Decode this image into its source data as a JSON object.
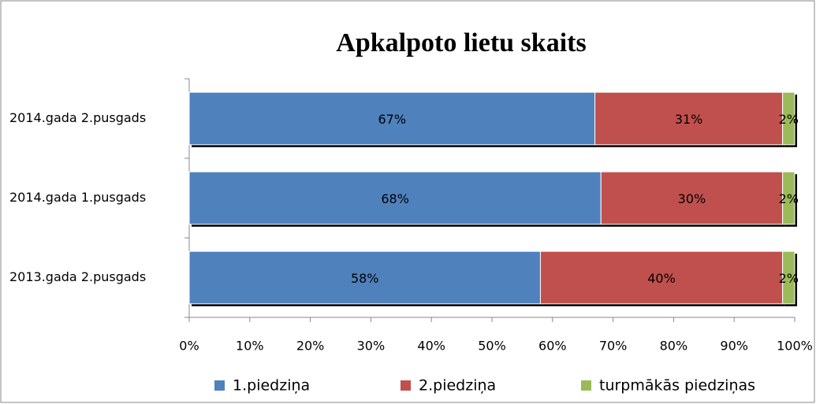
{
  "chart_data": {
    "type": "stacked_bar_horizontal",
    "title": "Apkalpoto lietu skaits",
    "categories": [
      "2014.gada 2.pusgads",
      "2014.gada 1.pusgads",
      "2013.gada 2.pusgads"
    ],
    "series": [
      {
        "name": "1.piedziņa",
        "color": "#4f81bd",
        "values": [
          67,
          68,
          58
        ],
        "value_labels": [
          "67%",
          "68%",
          "58%"
        ]
      },
      {
        "name": "2.piedziņa",
        "color": "#c0504d",
        "values": [
          31,
          30,
          40
        ],
        "value_labels": [
          "31%",
          "30%",
          "40%"
        ]
      },
      {
        "name": "turpmākās piedziņas",
        "color": "#9bbb59",
        "values": [
          2,
          2,
          2
        ],
        "value_labels": [
          "2%",
          "2%",
          "2%"
        ]
      }
    ],
    "xlim": [
      0,
      100
    ],
    "xticks": [
      {
        "value": 0,
        "label": "0%"
      },
      {
        "value": 10,
        "label": "10%"
      },
      {
        "value": 20,
        "label": "20%"
      },
      {
        "value": 30,
        "label": "30%"
      },
      {
        "value": 40,
        "label": "40%"
      },
      {
        "value": 50,
        "label": "50%"
      },
      {
        "value": 60,
        "label": "60%"
      },
      {
        "value": 70,
        "label": "70%"
      },
      {
        "value": 80,
        "label": "80%"
      },
      {
        "value": 90,
        "label": "90%"
      },
      {
        "value": 100,
        "label": "100%"
      }
    ],
    "legend": "bottom"
  }
}
